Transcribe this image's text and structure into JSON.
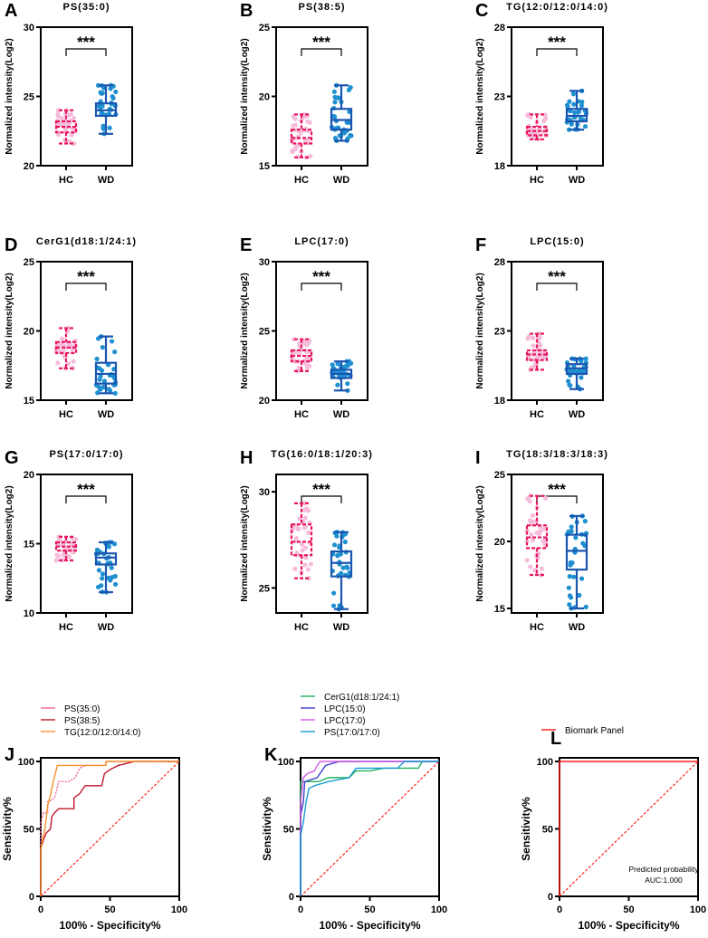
{
  "colors": {
    "hc_box": "#e8175d",
    "hc_dot": "#f6bcdc",
    "wd_box": "#1a56b0",
    "wd_dot": "#1e90d0",
    "diagonal": "#ff2020"
  },
  "box_ylabel": "Normalized intensity(Log2)",
  "roc_xlabel": "100% - Specificity%",
  "roc_ylabel": "Sensitivity%",
  "chart_data": [
    {
      "type": "box",
      "panel": "A",
      "title": "PS(35:0)",
      "ylim": [
        20,
        30
      ],
      "yticks": [
        20,
        25,
        30
      ],
      "categories": [
        "HC",
        "WD"
      ],
      "significance": "***",
      "groups": [
        {
          "name": "HC",
          "min": 21.6,
          "q1": 22.4,
          "median": 22.8,
          "q3": 23.2,
          "max": 24.0
        },
        {
          "name": "WD",
          "min": 22.3,
          "q1": 23.6,
          "median": 24.0,
          "q3": 24.5,
          "max": 25.8
        }
      ]
    },
    {
      "type": "box",
      "panel": "B",
      "title": "PS(38:5)",
      "ylim": [
        15,
        25
      ],
      "yticks": [
        15,
        20,
        25
      ],
      "categories": [
        "HC",
        "WD"
      ],
      "significance": "***",
      "groups": [
        {
          "name": "HC",
          "min": 15.6,
          "q1": 16.6,
          "median": 17.0,
          "q3": 17.6,
          "max": 18.7
        },
        {
          "name": "WD",
          "min": 16.8,
          "q1": 17.6,
          "median": 18.3,
          "q3": 19.1,
          "max": 20.8
        }
      ]
    },
    {
      "type": "box",
      "panel": "C",
      "title": "TG(12:0/12:0/14:0)",
      "ylim": [
        18,
        28
      ],
      "yticks": [
        18,
        23,
        28
      ],
      "categories": [
        "HC",
        "WD"
      ],
      "significance": "***",
      "groups": [
        {
          "name": "HC",
          "min": 19.9,
          "q1": 20.2,
          "median": 20.5,
          "q3": 20.8,
          "max": 21.7
        },
        {
          "name": "WD",
          "min": 20.6,
          "q1": 21.2,
          "median": 21.6,
          "q3": 22.1,
          "max": 23.4
        }
      ]
    },
    {
      "type": "box",
      "panel": "D",
      "title": "CerG1(d18:1/24:1)",
      "ylim": [
        15,
        25
      ],
      "yticks": [
        15,
        20,
        25
      ],
      "categories": [
        "HC",
        "WD"
      ],
      "significance": "***",
      "groups": [
        {
          "name": "HC",
          "min": 17.3,
          "q1": 18.4,
          "median": 18.8,
          "q3": 19.2,
          "max": 20.2
        },
        {
          "name": "WD",
          "min": 15.5,
          "q1": 16.2,
          "median": 16.9,
          "q3": 17.7,
          "max": 19.6
        }
      ]
    },
    {
      "type": "box",
      "panel": "E",
      "title": "LPC(17:0)",
      "ylim": [
        20,
        30
      ],
      "yticks": [
        20,
        25,
        30
      ],
      "categories": [
        "HC",
        "WD"
      ],
      "significance": "***",
      "groups": [
        {
          "name": "HC",
          "min": 22.1,
          "q1": 22.8,
          "median": 23.2,
          "q3": 23.6,
          "max": 24.4
        },
        {
          "name": "WD",
          "min": 20.7,
          "q1": 21.6,
          "median": 21.9,
          "q3": 22.2,
          "max": 22.8
        }
      ]
    },
    {
      "type": "box",
      "panel": "F",
      "title": "LPC(15:0)",
      "ylim": [
        18,
        28
      ],
      "yticks": [
        18,
        23,
        28
      ],
      "categories": [
        "HC",
        "WD"
      ],
      "significance": "***",
      "groups": [
        {
          "name": "HC",
          "min": 20.2,
          "q1": 20.9,
          "median": 21.3,
          "q3": 21.6,
          "max": 22.8
        },
        {
          "name": "WD",
          "min": 18.8,
          "q1": 19.9,
          "median": 20.3,
          "q3": 20.6,
          "max": 21.0
        }
      ]
    },
    {
      "type": "box",
      "panel": "G",
      "title": "PS(17:0/17:0)",
      "ylim": [
        10,
        20
      ],
      "yticks": [
        10,
        15,
        20
      ],
      "categories": [
        "HC",
        "WD"
      ],
      "significance": "***",
      "groups": [
        {
          "name": "HC",
          "min": 13.8,
          "q1": 14.5,
          "median": 14.8,
          "q3": 15.1,
          "max": 15.5
        },
        {
          "name": "WD",
          "min": 11.5,
          "q1": 13.5,
          "median": 14.0,
          "q3": 14.3,
          "max": 15.1
        }
      ]
    },
    {
      "type": "box",
      "panel": "H",
      "title": "TG(16:0/18:1/20:3)",
      "ylim": [
        23.7,
        30.9
      ],
      "yticks": [
        25,
        30
      ],
      "categories": [
        "HC",
        "WD"
      ],
      "significance": "***",
      "groups": [
        {
          "name": "HC",
          "min": 25.5,
          "q1": 26.7,
          "median": 27.4,
          "q3": 28.3,
          "max": 29.4
        },
        {
          "name": "WD",
          "min": 23.9,
          "q1": 25.6,
          "median": 26.3,
          "q3": 26.9,
          "max": 27.9
        }
      ]
    },
    {
      "type": "box",
      "panel": "I",
      "title": "TG(18:3/18:3/18:3)",
      "ylim": [
        14.66,
        25
      ],
      "yticks": [
        15,
        20,
        25
      ],
      "categories": [
        "HC",
        "WD"
      ],
      "significance": "***",
      "groups": [
        {
          "name": "HC",
          "min": 17.5,
          "q1": 19.5,
          "median": 20.3,
          "q3": 21.2,
          "max": 23.4
        },
        {
          "name": "WD",
          "min": 15.0,
          "q1": 17.9,
          "median": 19.3,
          "q3": 20.5,
          "max": 21.9
        }
      ]
    },
    {
      "type": "line",
      "panel": "J",
      "xlim": [
        0,
        100
      ],
      "ylim": [
        0,
        100
      ],
      "xticks": [
        0,
        50,
        100
      ],
      "yticks": [
        0,
        50,
        100
      ],
      "series": [
        {
          "name": "PS(35:0)",
          "color": "#f0609a",
          "dash": true,
          "points": [
            [
              0,
              0
            ],
            [
              0,
              55
            ],
            [
              2,
              62
            ],
            [
              5,
              62
            ],
            [
              5,
              70
            ],
            [
              10,
              73
            ],
            [
              13,
              85
            ],
            [
              20,
              85
            ],
            [
              25,
              88
            ],
            [
              28,
              95
            ],
            [
              32,
              97
            ],
            [
              47,
              97
            ],
            [
              47,
              100
            ],
            [
              100,
              100
            ]
          ]
        },
        {
          "name": "PS(38:5)",
          "color": "#c0182a",
          "dash": false,
          "points": [
            [
              0,
              0
            ],
            [
              0,
              35
            ],
            [
              2,
              42
            ],
            [
              4,
              47
            ],
            [
              7,
              50
            ],
            [
              8,
              59
            ],
            [
              10,
              62
            ],
            [
              13,
              65
            ],
            [
              24,
              65
            ],
            [
              24,
              73
            ],
            [
              28,
              76
            ],
            [
              30,
              79
            ],
            [
              32,
              82
            ],
            [
              44,
              82
            ],
            [
              46,
              91
            ],
            [
              50,
              94
            ],
            [
              56,
              97
            ],
            [
              68,
              100
            ],
            [
              100,
              100
            ]
          ]
        },
        {
          "name": "TG(12:0/12:0/14:0)",
          "color": "#f7902a",
          "dash": false,
          "points": [
            [
              0,
              0
            ],
            [
              0,
              35
            ],
            [
              3,
              50
            ],
            [
              5,
              67
            ],
            [
              7,
              75
            ],
            [
              9,
              85
            ],
            [
              12,
              97
            ],
            [
              47,
              97
            ],
            [
              47,
              100
            ],
            [
              100,
              100
            ]
          ]
        }
      ]
    },
    {
      "type": "line",
      "panel": "K",
      "xlim": [
        0,
        100
      ],
      "ylim": [
        0,
        100
      ],
      "xticks": [
        0,
        50,
        100
      ],
      "yticks": [
        0,
        50,
        100
      ],
      "series": [
        {
          "name": "CerG1(d18:1/24:1)",
          "color": "#21b35a",
          "dash": false,
          "points": [
            [
              0,
              0
            ],
            [
              0,
              85
            ],
            [
              13,
              85
            ],
            [
              20,
              88
            ],
            [
              35,
              88
            ],
            [
              40,
              93
            ],
            [
              50,
              93
            ],
            [
              60,
              95
            ],
            [
              85,
              95
            ],
            [
              88,
              100
            ],
            [
              100,
              100
            ]
          ]
        },
        {
          "name": "LPC(15:0)",
          "color": "#3a3fc8",
          "dash": false,
          "points": [
            [
              0,
              0
            ],
            [
              0,
              60
            ],
            [
              2,
              70
            ],
            [
              3,
              85
            ],
            [
              12,
              88
            ],
            [
              18,
              97
            ],
            [
              28,
              100
            ],
            [
              100,
              100
            ]
          ]
        },
        {
          "name": "LPC(17:0)",
          "color": "#d25ce8",
          "dash": false,
          "points": [
            [
              0,
              0
            ],
            [
              0,
              70
            ],
            [
              2,
              88
            ],
            [
              5,
              91
            ],
            [
              10,
              93
            ],
            [
              12,
              97
            ],
            [
              14,
              100
            ],
            [
              100,
              100
            ]
          ]
        },
        {
          "name": "PS(17:0/17:0)",
          "color": "#1a9ad6",
          "dash": false,
          "points": [
            [
              0,
              0
            ],
            [
              0,
              45
            ],
            [
              2,
              55
            ],
            [
              4,
              70
            ],
            [
              6,
              80
            ],
            [
              10,
              82
            ],
            [
              20,
              85
            ],
            [
              35,
              88
            ],
            [
              40,
              95
            ],
            [
              70,
              95
            ],
            [
              75,
              100
            ],
            [
              100,
              100
            ]
          ]
        }
      ]
    },
    {
      "type": "line",
      "panel": "L",
      "xlim": [
        0,
        100
      ],
      "ylim": [
        0,
        100
      ],
      "xticks": [
        0,
        50,
        100
      ],
      "yticks": [
        0,
        50,
        100
      ],
      "annotation": [
        "Predicted probability",
        "AUC:1.000"
      ],
      "series": [
        {
          "name": "Biomark Panel",
          "color": "#ff1a1a",
          "dash": false,
          "points": [
            [
              0,
              0
            ],
            [
              0,
              100
            ],
            [
              100,
              100
            ]
          ]
        }
      ]
    }
  ]
}
